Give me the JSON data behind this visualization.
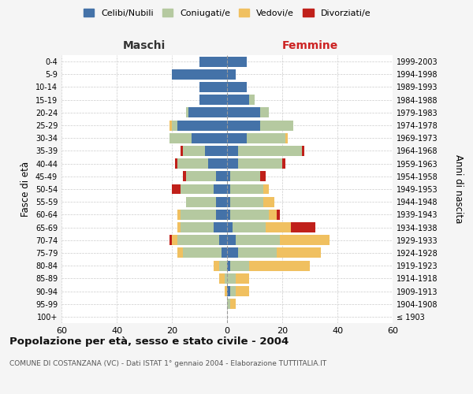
{
  "age_groups": [
    "100+",
    "95-99",
    "90-94",
    "85-89",
    "80-84",
    "75-79",
    "70-74",
    "65-69",
    "60-64",
    "55-59",
    "50-54",
    "45-49",
    "40-44",
    "35-39",
    "30-34",
    "25-29",
    "20-24",
    "15-19",
    "10-14",
    "5-9",
    "0-4"
  ],
  "birth_years": [
    "≤ 1903",
    "1904-1908",
    "1909-1913",
    "1914-1918",
    "1919-1923",
    "1924-1928",
    "1929-1933",
    "1934-1938",
    "1939-1943",
    "1944-1948",
    "1949-1953",
    "1954-1958",
    "1959-1963",
    "1964-1968",
    "1969-1973",
    "1974-1978",
    "1979-1983",
    "1984-1988",
    "1989-1993",
    "1994-1998",
    "1999-2003"
  ],
  "colors": {
    "celibi": "#4472a8",
    "coniugati": "#b5c9a0",
    "vedovi": "#f0c060",
    "divorziati": "#c0201a"
  },
  "maschi": {
    "celibi": [
      0,
      0,
      0,
      0,
      0,
      2,
      3,
      5,
      4,
      4,
      5,
      4,
      7,
      8,
      13,
      18,
      14,
      10,
      10,
      20,
      10
    ],
    "coniugati": [
      0,
      0,
      0,
      1,
      3,
      14,
      15,
      12,
      13,
      11,
      12,
      11,
      11,
      8,
      8,
      2,
      1,
      0,
      0,
      0,
      0
    ],
    "vedovi": [
      0,
      0,
      1,
      2,
      2,
      2,
      2,
      1,
      1,
      0,
      0,
      0,
      0,
      0,
      0,
      1,
      0,
      0,
      0,
      0,
      0
    ],
    "divorziati": [
      0,
      0,
      0,
      0,
      0,
      0,
      1,
      0,
      0,
      0,
      3,
      1,
      1,
      1,
      0,
      0,
      0,
      0,
      0,
      0,
      0
    ]
  },
  "femmine": {
    "nubili": [
      0,
      0,
      1,
      0,
      1,
      4,
      3,
      2,
      1,
      1,
      1,
      1,
      4,
      4,
      7,
      12,
      12,
      8,
      7,
      3,
      7
    ],
    "coniugate": [
      0,
      1,
      2,
      3,
      7,
      14,
      16,
      12,
      14,
      12,
      12,
      11,
      16,
      23,
      14,
      12,
      3,
      2,
      0,
      0,
      0
    ],
    "vedove": [
      0,
      2,
      5,
      5,
      22,
      16,
      18,
      9,
      3,
      4,
      2,
      0,
      0,
      0,
      1,
      0,
      0,
      0,
      0,
      0,
      0
    ],
    "divorziate": [
      0,
      0,
      0,
      0,
      0,
      0,
      0,
      9,
      1,
      0,
      0,
      2,
      1,
      1,
      0,
      0,
      0,
      0,
      0,
      0,
      0
    ]
  },
  "title": "Popolazione per età, sesso e stato civile - 2004",
  "subtitle": "COMUNE DI COSTANZANA (VC) - Dati ISTAT 1° gennaio 2004 - Elaborazione TUTTITALIA.IT",
  "xlabel_left": "Maschi",
  "xlabel_right": "Femmine",
  "ylabel_left": "Fasce di età",
  "ylabel_right": "Anni di nascita",
  "xlim": 60,
  "legend_labels": [
    "Celibi/Nubili",
    "Coniugati/e",
    "Vedovi/e",
    "Divorziati/e"
  ],
  "bg_color": "#f5f5f5",
  "plot_bg": "#ffffff"
}
